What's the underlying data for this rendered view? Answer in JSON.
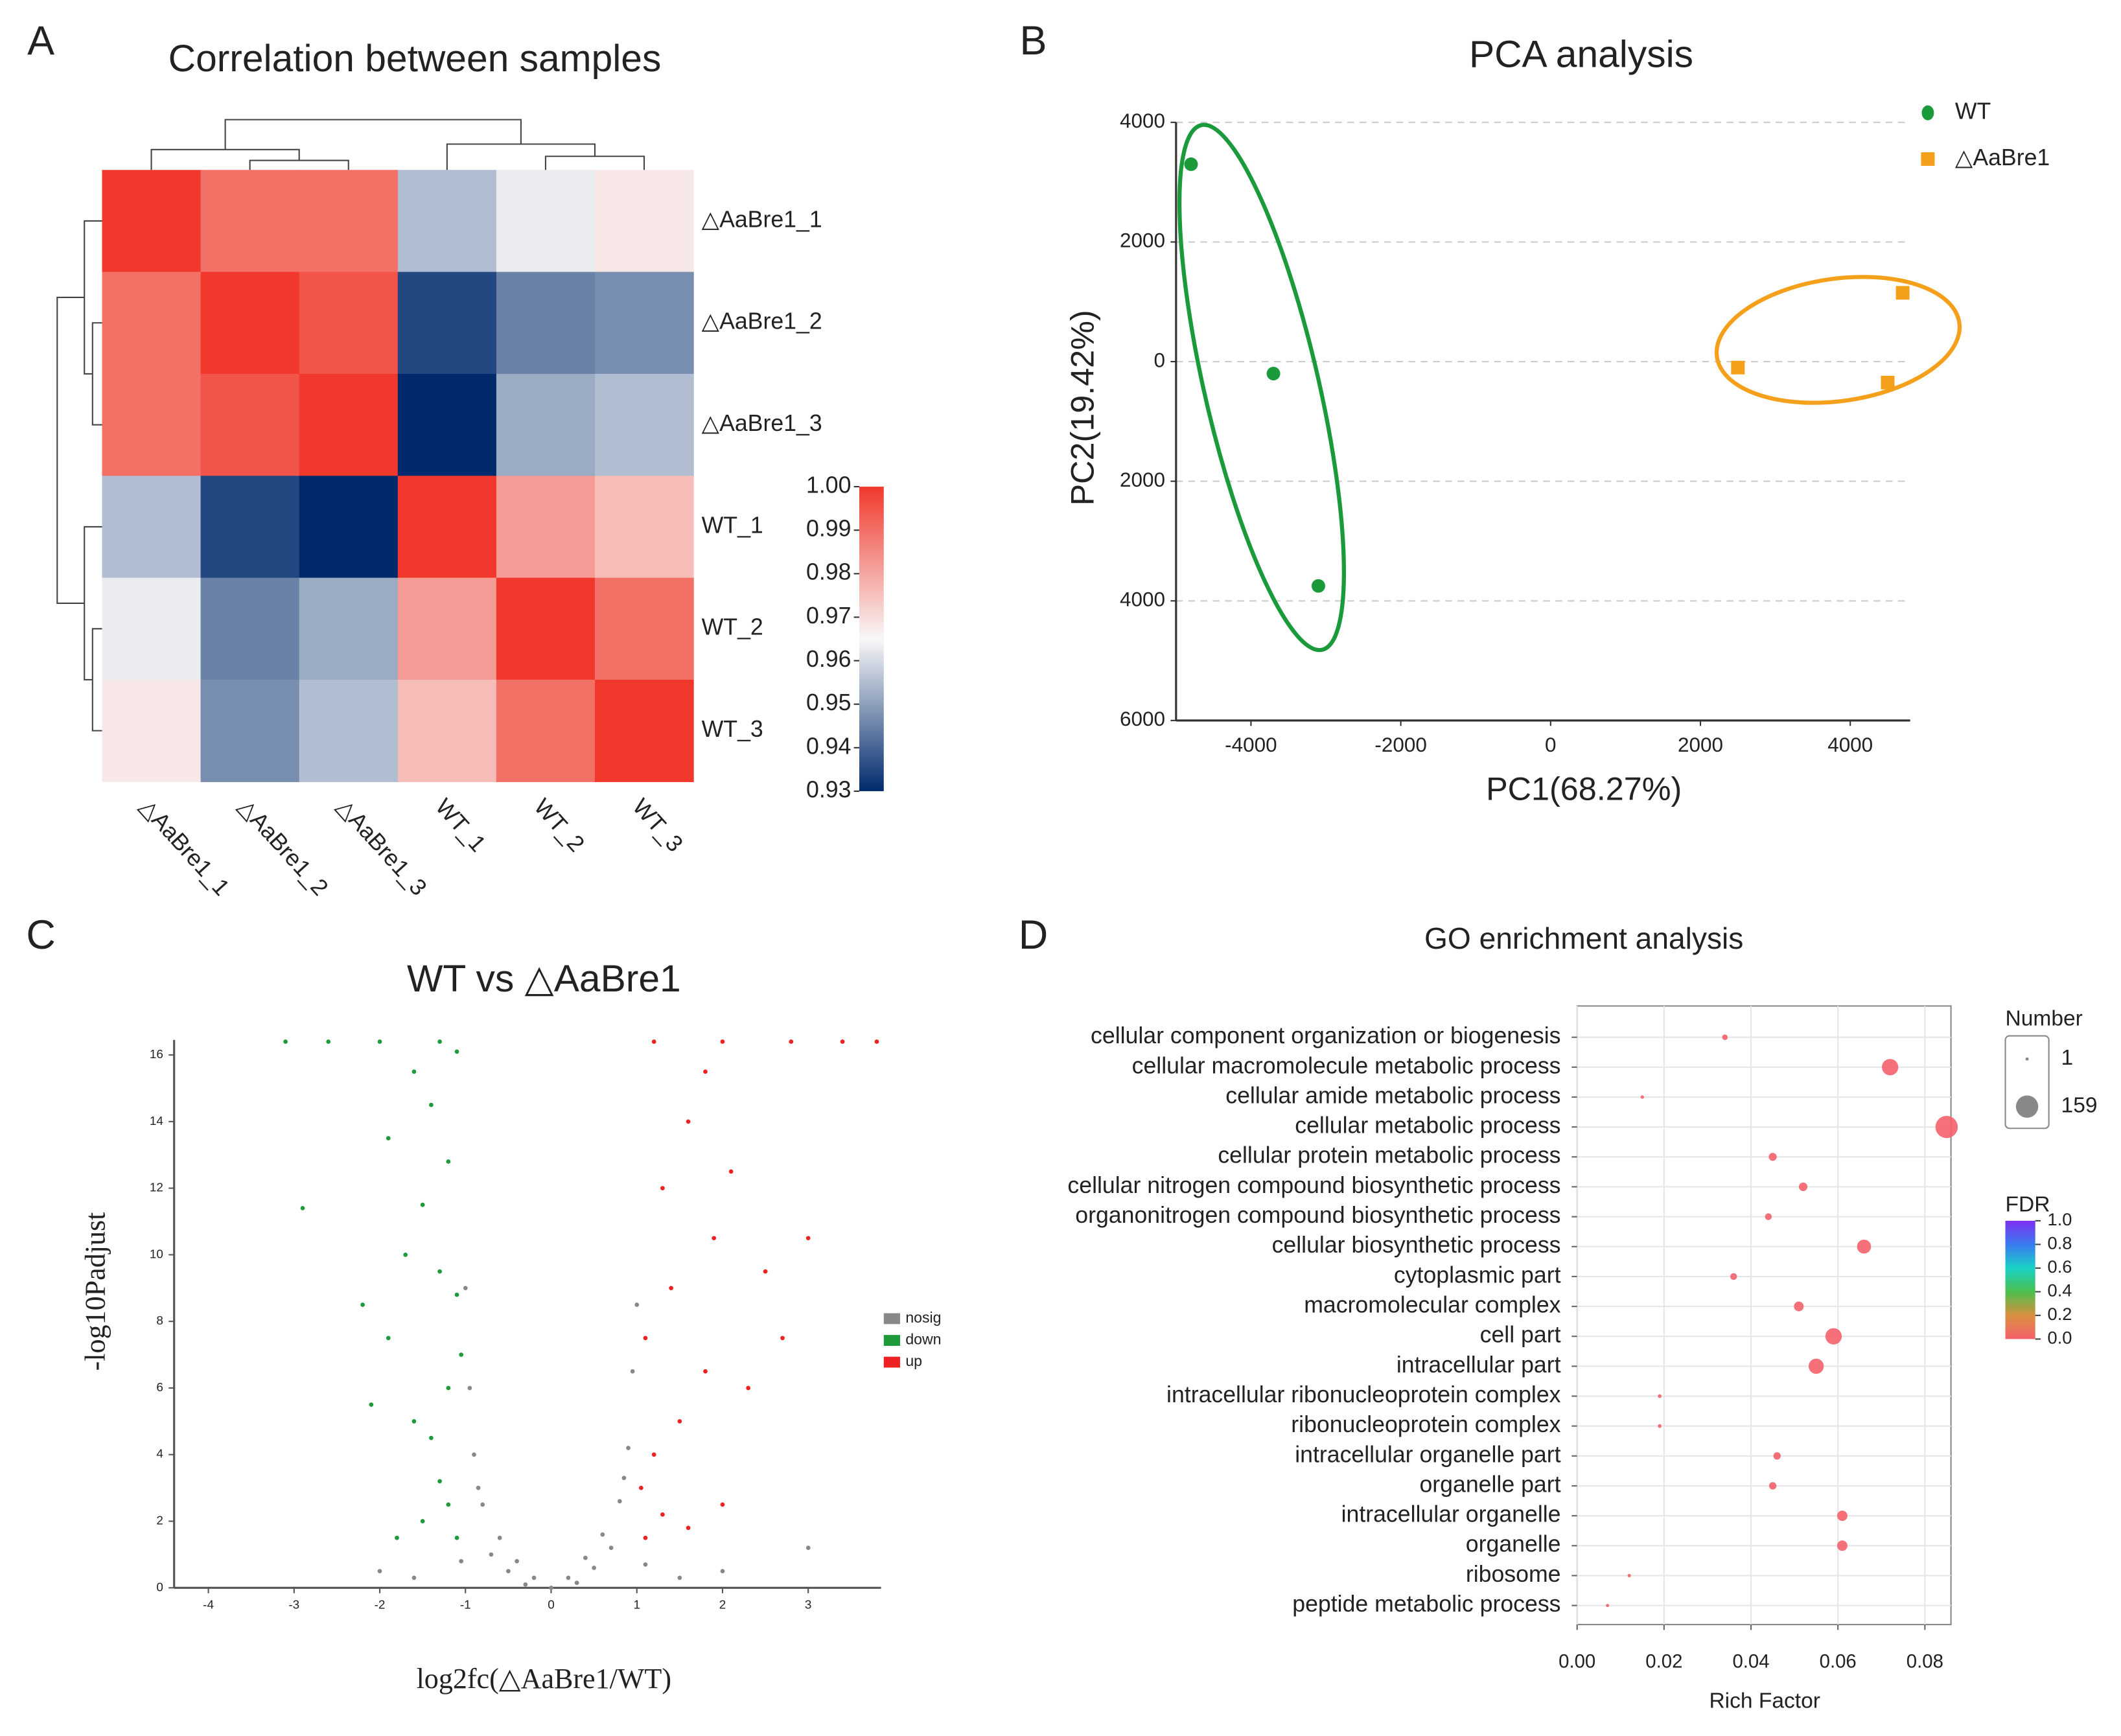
{
  "chart_data": [
    {
      "panel": "A",
      "type": "heatmap",
      "title": "Correlation between samples",
      "rows": [
        "△AaBre1_1",
        "△AaBre1_2",
        "△AaBre1_3",
        "WT_1",
        "WT_2",
        "WT_3"
      ],
      "columns": [
        "△AaBre1_1",
        "△AaBre1_2",
        "△AaBre1_3",
        "WT_1",
        "WT_2",
        "WT_3"
      ],
      "values": [
        [
          1,
          0.99,
          0.99,
          0.955,
          0.963,
          0.968
        ],
        [
          0.99,
          1,
          0.995,
          0.935,
          0.945,
          0.947
        ],
        [
          0.99,
          0.995,
          1,
          0.93,
          0.952,
          0.955
        ],
        [
          0.955,
          0.935,
          0.93,
          1,
          0.982,
          0.976
        ],
        [
          0.963,
          0.945,
          0.952,
          0.982,
          1,
          0.99
        ],
        [
          0.968,
          0.947,
          0.955,
          0.976,
          0.99,
          1
        ]
      ],
      "zlim": [
        0.93,
        1
      ],
      "colormap": [
        "#002a6c",
        "#f8f8f8",
        "#f0392c"
      ],
      "colorbar_ticks": [
        {
          "value": 1,
          "label": "1.00"
        },
        0.99,
        0.98,
        0.97,
        0.96,
        0.95,
        0.94,
        0.93
      ]
    },
    {
      "panel": "B",
      "type": "scatter",
      "title": "PCA analysis",
      "xlabel": "PC1(68.27%)",
      "ylabel": "PC2(19.42%)",
      "xlim": [
        -5000,
        4800
      ],
      "ylim": [
        -6000,
        4000
      ],
      "xticks": [
        -4000,
        -2000,
        0,
        2000,
        4000
      ],
      "yticks": [
        {
          "value": -6000,
          "label": "6000"
        },
        {
          "value": -4000,
          "label": "4000"
        },
        {
          "value": -2000,
          "label": "2000"
        },
        0,
        2000,
        4000
      ],
      "grid": true,
      "legend": "top-right",
      "series": [
        {
          "name": "WT",
          "color": "#1b9a3c",
          "marker": "circle",
          "x": [
            -4800,
            -3700,
            -3100
          ],
          "y": [
            3300,
            -200,
            -3750
          ]
        },
        {
          "name": "△AaBre1",
          "color": "#f5a01a",
          "marker": "square",
          "x": [
            2500,
            4500,
            4700
          ],
          "y": [
            -100,
            -350,
            1150
          ]
        }
      ]
    },
    {
      "panel": "C",
      "type": "scatter",
      "title": "WT vs △AaBre1",
      "xlabel": "log2fc(△AaBre1/WT)",
      "ylabel": "-log10Padjust",
      "xlim": [
        -4.4,
        3.85
      ],
      "ylim": [
        0,
        16.45
      ],
      "xticks": [
        -4,
        -3,
        -2,
        -1,
        0,
        1,
        2,
        3
      ],
      "yticks": [
        0,
        2,
        4,
        6,
        8,
        10,
        12,
        14,
        16
      ],
      "grid": false,
      "legend": "right",
      "series": [
        {
          "name": "nosig",
          "color": "#888888",
          "marker": "circle",
          "x": [
            0,
            -0.2,
            0.2,
            -0.4,
            0.4,
            -0.6,
            0.6,
            -0.8,
            0.8,
            -0.9,
            0.9,
            -0.95,
            0.95,
            -0.7,
            0.7,
            -0.5,
            0.5,
            1.5,
            -1.6,
            2,
            -2,
            -0.3,
            0.3,
            -0.85,
            0.85,
            -1,
            1,
            -1.05,
            1.1,
            3
          ],
          "y": [
            0,
            0.3,
            0.3,
            0.8,
            0.9,
            1.5,
            1.6,
            2.5,
            2.6,
            4,
            4.2,
            6,
            6.5,
            1,
            1.2,
            0.5,
            0.6,
            0.3,
            0.3,
            0.5,
            0.5,
            0.1,
            0.15,
            3,
            3.3,
            9,
            8.5,
            0.8,
            0.7,
            1.2
          ]
        },
        {
          "name": "down",
          "color": "#1e9a3a",
          "marker": "circle",
          "x": [
            -1.1,
            -1.2,
            -1.3,
            -1.5,
            -1.8,
            -1.4,
            -1.6,
            -1.2,
            -1.9,
            -1.1,
            -1.3,
            -1.7,
            -1.5,
            -1.2,
            -1.9,
            -1.4,
            -1.6,
            -1.1,
            -2.2,
            -2.9,
            -2.1,
            -1.05,
            -1.3,
            -2,
            -2.6,
            -3.1
          ],
          "y": [
            1.5,
            2.5,
            3.2,
            2,
            1.5,
            4.5,
            5,
            6,
            7.5,
            8.8,
            9.5,
            10,
            11.5,
            12.8,
            13.5,
            14.5,
            15.5,
            16.1,
            8.5,
            11.4,
            5.5,
            7,
            16.4,
            16.4,
            16.4,
            16.4
          ]
        },
        {
          "name": "up",
          "color": "#ee2222",
          "marker": "circle",
          "x": [
            1.1,
            1.3,
            1.6,
            2,
            1.2,
            1.5,
            1.8,
            2.3,
            1.1,
            1.4,
            1.9,
            2.5,
            3,
            1.3,
            2.1,
            1.6,
            1.8,
            1.2,
            2,
            2.8,
            3.4,
            3.8,
            2.7,
            1.05
          ],
          "y": [
            1.5,
            2.2,
            1.8,
            2.5,
            4,
            5,
            6.5,
            6,
            7.5,
            9,
            10.5,
            9.5,
            10.5,
            12,
            12.5,
            14,
            15.5,
            16.4,
            16.4,
            16.4,
            16.4,
            16.4,
            7.5,
            3
          ]
        }
      ]
    },
    {
      "panel": "D",
      "type": "bubble",
      "title": "GO enrichment analysis",
      "xlabel": "Rich Factor",
      "categories": [
        "cellular component organization or biogenesis",
        "cellular macromolecule metabolic process",
        "cellular amide metabolic process",
        "cellular metabolic process",
        "cellular protein metabolic process",
        "cellular nitrogen compound biosynthetic process",
        "organonitrogen compound biosynthetic process",
        "cellular biosynthetic process",
        "cytoplasmic part",
        "macromolecular complex",
        "cell part",
        "intracellular part",
        "intracellular ribonucleoprotein complex",
        "ribonucleoprotein complex",
        "intracellular organelle part",
        "organelle part",
        "intracellular organelle",
        "organelle",
        "ribosome",
        "peptide metabolic process"
      ],
      "values": [
        0.034,
        0.072,
        0.015,
        0.085,
        0.045,
        0.052,
        0.044,
        0.066,
        0.036,
        0.051,
        0.059,
        0.055,
        0.019,
        0.019,
        0.046,
        0.045,
        0.061,
        0.061,
        0.012,
        0.007
      ],
      "number": [
        20,
        110,
        3,
        159,
        40,
        45,
        30,
        90,
        30,
        55,
        110,
        100,
        5,
        5,
        35,
        35,
        60,
        60,
        2,
        1
      ],
      "fdr": [
        0,
        0,
        0,
        0,
        0,
        0,
        0,
        0,
        0,
        0,
        0,
        0,
        0,
        0,
        0,
        0,
        0,
        0,
        0,
        0
      ],
      "xlim": [
        0,
        0.086
      ],
      "xticks": [
        {
          "value": 0,
          "label": "0.00"
        },
        0.02,
        0.04,
        0.06,
        0.08
      ],
      "grid": true,
      "size_legend": {
        "title": "Number",
        "values": [
          1,
          159
        ]
      },
      "color_legend": {
        "title": "FDR",
        "colormap": [
          "#f5606b",
          "#d99040",
          "#4cbf4c",
          "#18d2c6",
          "#3a7bf0",
          "#7b2ff0"
        ],
        "ticks": [
          {
            "value": 1,
            "label": "1.0"
          },
          0.8,
          0.6,
          0.4,
          0.2,
          {
            "value": 0,
            "label": "0.0"
          }
        ]
      }
    }
  ]
}
